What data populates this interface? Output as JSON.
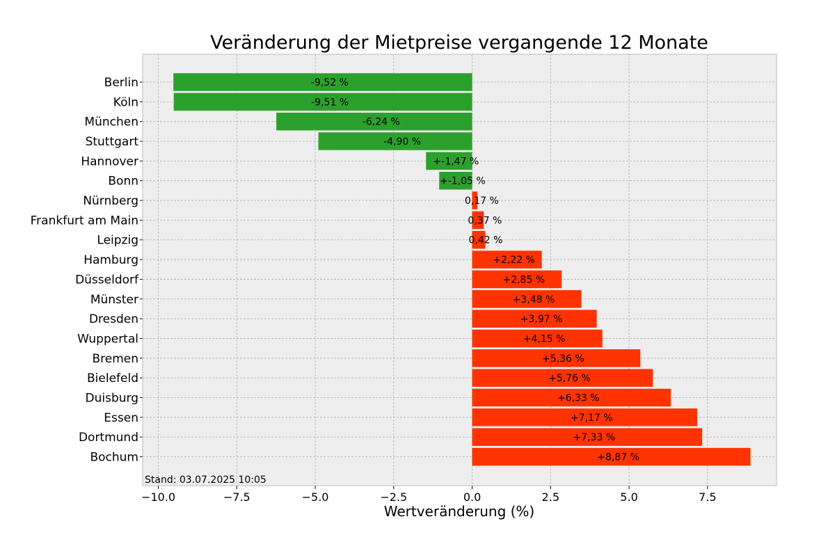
{
  "chart_data": {
    "type": "bar",
    "orientation": "horizontal",
    "title": "Veränderung der Mietpreise vergangende 12 Monate",
    "xlabel": "Wertveränderung (%)",
    "ylabel": "",
    "xlim": [
      -10.5,
      9.7
    ],
    "xticks": [
      -10.0,
      -7.5,
      -5.0,
      -2.5,
      0.0,
      2.5,
      5.0,
      7.5
    ],
    "xtick_labels": [
      "−10.0",
      "−7.5",
      "−5.0",
      "−2.5",
      "0.0",
      "2.5",
      "5.0",
      "7.5"
    ],
    "grid": true,
    "categories": [
      "Berlin",
      "Köln",
      "München",
      "Stuttgart",
      "Hannover",
      "Bonn",
      "Nürnberg",
      "Frankfurt am Main",
      "Leipzig",
      "Hamburg",
      "Düsseldorf",
      "Münster",
      "Dresden",
      "Wuppertal",
      "Bremen",
      "Bielefeld",
      "Duisburg",
      "Essen",
      "Dortmund",
      "Bochum"
    ],
    "values": [
      -9.52,
      -9.51,
      -6.24,
      -4.9,
      -1.47,
      -1.05,
      0.17,
      0.37,
      0.42,
      2.22,
      2.85,
      3.48,
      3.97,
      4.15,
      5.36,
      5.76,
      6.33,
      7.17,
      7.33,
      8.87
    ],
    "value_labels": [
      "-9,52 %",
      "-9,51 %",
      "-6,24 %",
      "-4,90 %",
      "+-1,47 %",
      "+-1,05 %",
      "0,17 %",
      "0,37 %",
      "0,42 %",
      "+2,22 %",
      "+2,85 %",
      "+3,48 %",
      "+3,97 %",
      "+4,15 %",
      "+5,36 %",
      "+5,76 %",
      "+6,33 %",
      "+7,17 %",
      "+7,33 %",
      "+8,87 %"
    ],
    "annotation": "Stand: 03.07.2025 10:05",
    "colors": {
      "negative": "#2ca02c",
      "positive": "#ff3300",
      "plot_background": "#eeeeee",
      "grid": "#b0b0b0"
    }
  }
}
